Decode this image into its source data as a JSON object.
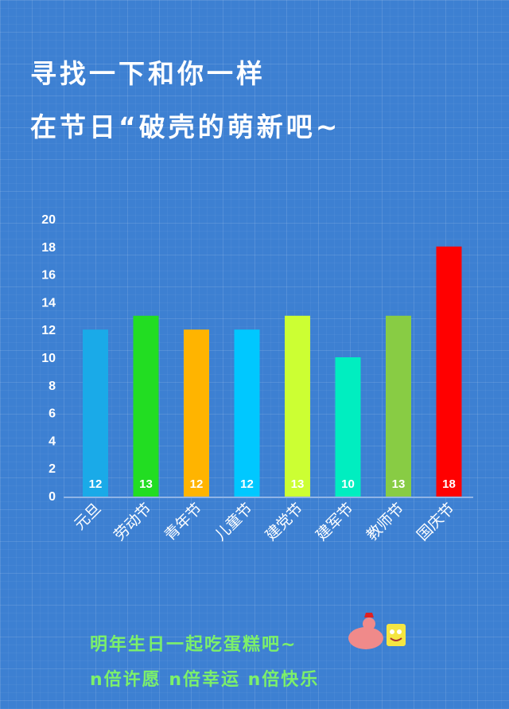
{
  "title_lines": [
    "寻找一下和你一样",
    "在节日“破壳的萌新吧~"
  ],
  "chart_data": {
    "type": "bar",
    "categories": [
      "元旦",
      "劳动节",
      "青年节",
      "儿童节",
      "建党节",
      "建军节",
      "教师节",
      "国庆节"
    ],
    "values": [
      12,
      13,
      12,
      12,
      13,
      10,
      13,
      18
    ],
    "colors": [
      "#1aaae8",
      "#22dd22",
      "#ffb400",
      "#00c8ff",
      "#ccff33",
      "#00eec0",
      "#88cc44",
      "#ff0000"
    ],
    "ylim": [
      0,
      20
    ],
    "yticks": [
      0,
      2,
      4,
      6,
      8,
      10,
      12,
      14,
      16,
      18,
      20
    ],
    "data_labels": true,
    "grid": false
  },
  "footer": {
    "line1": "明年生日一起吃蛋糕吧~",
    "line2": "n倍许愿 n倍幸运 n倍快乐"
  }
}
